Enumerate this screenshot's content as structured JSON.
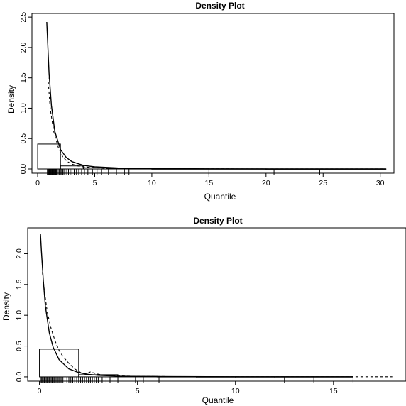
{
  "chart_data": [
    {
      "type": "histogram-density",
      "title": "Density Plot",
      "xlabel": "Quantile",
      "ylabel": "Density",
      "xlim": [
        -0.5,
        31.2
      ],
      "ylim": [
        -0.07,
        2.56
      ],
      "x_ticks": [
        0,
        5,
        10,
        15,
        20,
        25,
        30
      ],
      "y_ticks": [
        0.0,
        0.5,
        1.0,
        1.5,
        2.0,
        2.5
      ],
      "x_tick_labels": [
        "0",
        "5",
        "10",
        "15",
        "20",
        "25",
        "30"
      ],
      "y_tick_labels": [
        "0.0",
        "0.5",
        "1.0",
        "1.5",
        "2.0",
        "2.5"
      ],
      "histogram": {
        "bins": [
          [
            0,
            2
          ],
          [
            2,
            4
          ],
          [
            4,
            6
          ],
          [
            6,
            8
          ],
          [
            8,
            10
          ],
          [
            10,
            20
          ],
          [
            20,
            30.5
          ]
        ],
        "density": [
          0.41,
          0.05,
          0.02,
          0.01,
          0.005,
          0.002,
          0.001
        ]
      },
      "series": [
        {
          "style": "solid",
          "x": [
            0.8,
            1.0,
            1.2,
            1.5,
            2.0,
            2.5,
            3.0,
            4.0,
            5.0,
            7.0,
            10.0,
            15.0,
            20.0,
            25.0,
            30.5
          ],
          "y": [
            2.42,
            1.58,
            1.05,
            0.62,
            0.32,
            0.19,
            0.12,
            0.06,
            0.035,
            0.016,
            0.007,
            0.003,
            0.0015,
            0.001,
            0.0008
          ]
        },
        {
          "style": "dashed",
          "x": [
            0.9,
            1.1,
            1.4,
            1.8,
            2.2,
            2.6,
            3.0,
            3.5,
            4.0,
            5.0,
            6.0,
            8.0,
            12.0,
            20.0,
            30.5
          ],
          "y": [
            1.52,
            1.0,
            0.62,
            0.36,
            0.2,
            0.12,
            0.08,
            0.05,
            0.035,
            0.02,
            0.012,
            0.006,
            0.003,
            0.0015,
            0.001
          ]
        }
      ],
      "rug": [
        0.85,
        0.9,
        0.95,
        1.0,
        1.05,
        1.1,
        1.15,
        1.2,
        1.25,
        1.3,
        1.35,
        1.4,
        1.45,
        1.5,
        1.55,
        1.6,
        1.65,
        1.7,
        1.8,
        1.9,
        2.0,
        2.1,
        2.2,
        2.3,
        2.4,
        2.55,
        2.7,
        2.85,
        3.0,
        3.2,
        3.4,
        3.6,
        3.85,
        4.1,
        4.4,
        4.8,
        5.2,
        5.6,
        6.2,
        6.9,
        7.6,
        8.0,
        15.0,
        20.7,
        24.7
      ],
      "grid": false,
      "legend": "none"
    },
    {
      "type": "histogram-density",
      "title": "Density Plot",
      "xlabel": "Quantile",
      "ylabel": "Density",
      "xlim": [
        -0.6,
        18.7
      ],
      "ylim": [
        -0.07,
        2.42
      ],
      "x_ticks": [
        0,
        5,
        10,
        15
      ],
      "y_ticks": [
        0.0,
        0.5,
        1.0,
        1.5,
        2.0
      ],
      "x_tick_labels": [
        "0",
        "5",
        "10",
        "15"
      ],
      "y_tick_labels": [
        "0.0",
        "0.5",
        "1.0",
        "1.5",
        "2.0"
      ],
      "histogram": {
        "bins": [
          [
            0,
            2
          ],
          [
            2,
            4
          ],
          [
            4,
            6
          ],
          [
            6,
            8
          ],
          [
            8,
            10
          ],
          [
            10,
            12
          ],
          [
            12,
            14
          ],
          [
            14,
            16
          ]
        ],
        "density": [
          0.45,
          0.035,
          0.008,
          0.004,
          0.002,
          0.002,
          0.002,
          0.002
        ]
      },
      "series": [
        {
          "style": "solid",
          "x": [
            0.05,
            0.1,
            0.2,
            0.3,
            0.5,
            0.7,
            1.0,
            1.5,
            2.0,
            2.5,
            3.0,
            4.0,
            5.0,
            7.0,
            10.0,
            13.0,
            16.0
          ],
          "y": [
            2.32,
            2.05,
            1.55,
            1.15,
            0.72,
            0.48,
            0.28,
            0.13,
            0.07,
            0.04,
            0.025,
            0.012,
            0.007,
            0.004,
            0.002,
            0.0015,
            0.001
          ]
        },
        {
          "style": "dashed",
          "x": [
            0.15,
            0.25,
            0.4,
            0.6,
            0.8,
            1.0,
            1.2,
            1.5,
            1.8,
            2.1,
            2.4,
            2.6,
            2.9,
            3.2,
            4.0,
            5.0,
            7.0,
            10.0,
            14.0,
            18.0
          ],
          "y": [
            1.7,
            1.4,
            1.05,
            0.78,
            0.58,
            0.43,
            0.33,
            0.22,
            0.13,
            0.07,
            0.05,
            0.08,
            0.05,
            0.03,
            0.015,
            0.008,
            0.004,
            0.002,
            0.001,
            0.001
          ]
        }
      ],
      "rug": [
        0.05,
        0.1,
        0.15,
        0.2,
        0.25,
        0.3,
        0.35,
        0.4,
        0.45,
        0.5,
        0.55,
        0.6,
        0.65,
        0.7,
        0.75,
        0.8,
        0.85,
        0.9,
        0.95,
        1.0,
        1.05,
        1.1,
        1.15,
        1.2,
        1.3,
        1.4,
        1.5,
        1.6,
        1.7,
        1.8,
        1.9,
        2.0,
        2.1,
        2.2,
        2.3,
        2.4,
        2.5,
        2.6,
        2.7,
        2.8,
        2.9,
        3.0,
        3.2,
        3.4,
        3.6,
        4.0,
        4.9,
        5.3,
        6.1,
        12.5,
        14.0,
        16.0
      ],
      "grid": false,
      "legend": "none"
    }
  ]
}
